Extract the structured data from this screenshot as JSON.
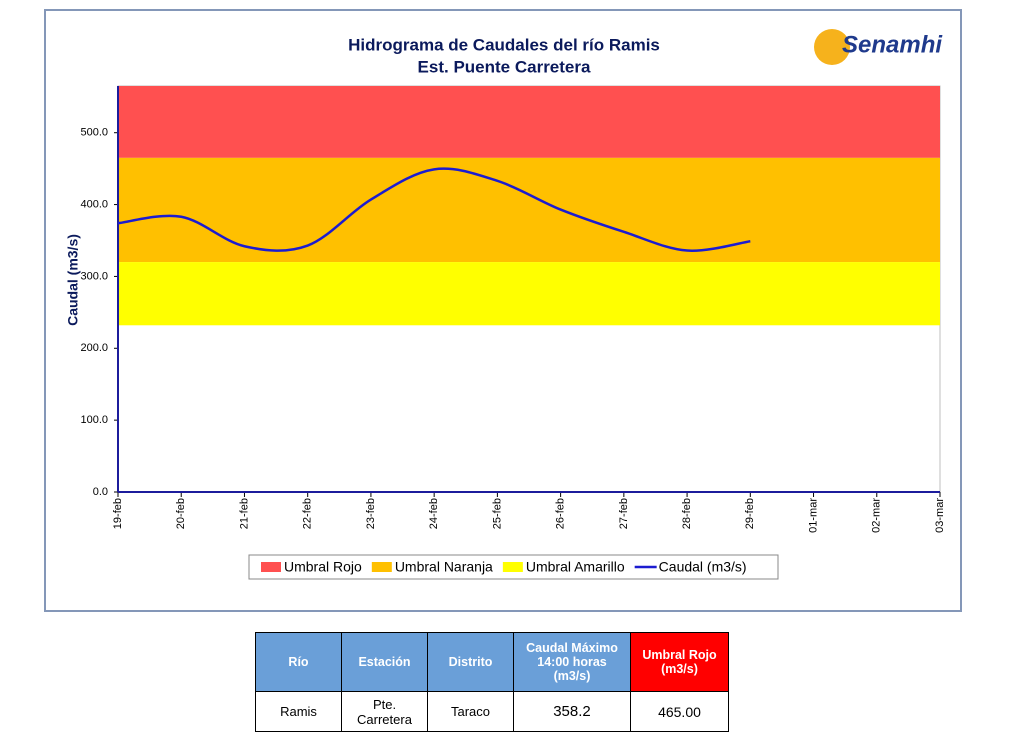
{
  "chart_data": {
    "type": "line",
    "title": "Hidrograma de Caudales del río Ramis",
    "subtitle": "Est. Puente Carretera",
    "logo": "Senamhi",
    "y_label": "Caudal (m3/s)",
    "categories": [
      "19-feb",
      "20-feb",
      "21-feb",
      "22-feb",
      "23-feb",
      "24-feb",
      "25-feb",
      "26-feb",
      "27-feb",
      "28-feb",
      "29-feb",
      "01-mar",
      "02-mar",
      "03-mar"
    ],
    "ylim": [
      0,
      565
    ],
    "yticks": [
      {
        "value": 0,
        "label": "0.0"
      },
      {
        "value": 100,
        "label": "100.0"
      },
      {
        "value": 200,
        "label": "200.0"
      },
      {
        "value": 300,
        "label": "300.0"
      },
      {
        "value": 400,
        "label": "400.0"
      },
      {
        "value": 500,
        "label": "500.0"
      }
    ],
    "thresholds": [
      {
        "name": "Umbral Rojo",
        "color": "#ff5050",
        "value": 465
      },
      {
        "name": "Umbral Naranja",
        "color": "#ffc000",
        "value": 320
      },
      {
        "name": "Umbral Amarillo",
        "color": "#ffff00",
        "value": 232
      }
    ],
    "series": [
      {
        "name": "Caudal (m3/s)",
        "color": "#1c1cd0",
        "values": [
          374,
          383,
          342,
          343,
          407,
          449,
          433,
          393,
          362,
          336,
          349,
          null,
          null,
          null
        ]
      }
    ]
  },
  "table": {
    "header": [
      "Río",
      "Estación",
      "Distrito",
      "Caudal Máximo 14:00 horas (m3/s)",
      "Umbral Rojo (m3/s)"
    ],
    "rows": [
      [
        "Ramis",
        "Pte. Carretera",
        "Taraco",
        "358.2",
        "465.00"
      ]
    ]
  }
}
